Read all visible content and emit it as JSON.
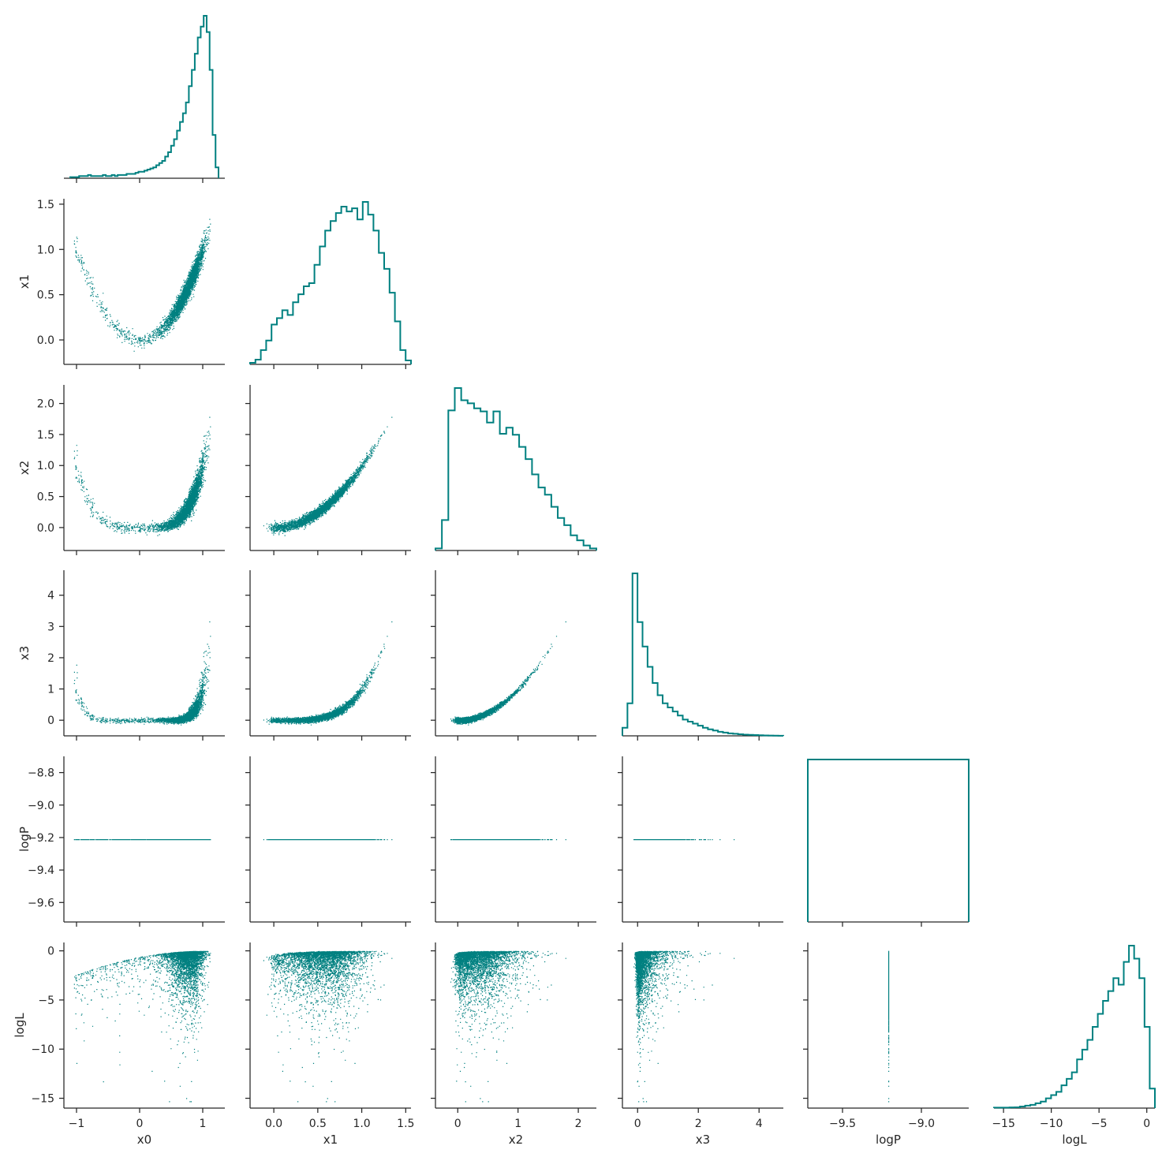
{
  "chart_data": {
    "type": "pairplot",
    "variables": [
      "x0",
      "x1",
      "x2",
      "x3",
      "logP",
      "logL"
    ],
    "color": "#008080",
    "layout": "lower-triangle",
    "axes": {
      "x0": {
        "label": "x0",
        "range": [
          -1.2,
          1.35
        ],
        "ticks": [
          -1,
          0,
          1
        ],
        "tick_labels": [
          "−1",
          "0",
          "1"
        ]
      },
      "x1": {
        "label": "x1",
        "range": [
          -0.27,
          1.56
        ],
        "ticks": [
          0.0,
          0.5,
          1.0,
          1.5
        ],
        "tick_labels": [
          "0.0",
          "0.5",
          "1.0",
          "1.5"
        ]
      },
      "x2": {
        "label": "x2",
        "range": [
          -0.37,
          2.3
        ],
        "ticks": [
          0.0,
          0.5,
          1.0,
          1.5,
          2.0
        ],
        "tick_labels": [
          "0.0",
          "0.5",
          "1.0",
          "1.5",
          "2.0"
        ]
      },
      "x3": {
        "label": "x3",
        "range": [
          -0.5,
          4.8
        ],
        "ticks": [
          0,
          1,
          2,
          3,
          4
        ],
        "tick_labels": [
          "0",
          "1",
          "2",
          "3",
          "4"
        ]
      },
      "logP": {
        "label": "logP",
        "range": [
          -9.72,
          -8.7
        ],
        "ticks": [
          -8.8,
          -9.0,
          -9.2,
          -9.4,
          -9.6
        ],
        "tick_labels": [
          "−8.8",
          "−9.0",
          "−9.2",
          "−9.4",
          "−9.6"
        ]
      },
      "logL": {
        "label": "logL",
        "range": [
          -16.0,
          0.85
        ],
        "ticks": [
          0,
          -5,
          -10,
          -15
        ],
        "tick_labels": [
          "0",
          "−5",
          "−10",
          "−15"
        ]
      }
    },
    "x_axis_ticks": {
      "x0": {
        "ticks": [
          -1,
          0,
          1
        ],
        "tick_labels": [
          "−1",
          "0",
          "1"
        ]
      },
      "x1": {
        "ticks": [
          0.0,
          0.5,
          1.0,
          1.5
        ],
        "tick_labels": [
          "0.0",
          "0.5",
          "1.0",
          "1.5"
        ]
      },
      "x2": {
        "ticks": [
          0,
          1,
          2
        ],
        "tick_labels": [
          "0",
          "1",
          "2"
        ]
      },
      "x3": {
        "ticks": [
          0,
          2,
          4
        ],
        "tick_labels": [
          "0",
          "2",
          "4"
        ]
      },
      "logP": {
        "ticks": [
          -9.5,
          -9.0
        ],
        "tick_labels": [
          "−9.5",
          "−9.0"
        ]
      },
      "logL": {
        "ticks": [
          -15,
          -10,
          -5,
          0
        ],
        "tick_labels": [
          "−15",
          "−10",
          "−5",
          "0"
        ]
      }
    },
    "histograms": {
      "x0": {
        "edges_range": [
          -1.1,
          1.25
        ],
        "counts": [
          1,
          1,
          1,
          2,
          2,
          2,
          3,
          2,
          2,
          2,
          2,
          3,
          2,
          2,
          3,
          2,
          3,
          3,
          3,
          4,
          4,
          4,
          5,
          6,
          6,
          7,
          8,
          9,
          10,
          12,
          14,
          16,
          20,
          24,
          30,
          36,
          44,
          52,
          60,
          70,
          85,
          100,
          115,
          130,
          140,
          150,
          135,
          100,
          40,
          10
        ]
      },
      "x1": {
        "edges_range": [
          -0.27,
          1.56
        ],
        "counts": [
          2,
          6,
          18,
          30,
          50,
          58,
          68,
          62,
          78,
          88,
          98,
          102,
          125,
          148,
          168,
          180,
          190,
          198,
          192,
          196,
          182,
          204,
          188,
          168,
          140,
          120,
          90,
          54,
          18,
          5
        ]
      },
      "x2": {
        "edges_range": [
          -0.37,
          2.3
        ],
        "counts": [
          2,
          30,
          138,
          160,
          148,
          145,
          140,
          137,
          126,
          137,
          115,
          121,
          114,
          102,
          90,
          75,
          62,
          55,
          43,
          32,
          25,
          15,
          10,
          5,
          2
        ]
      },
      "x3": {
        "edges_range": [
          -0.5,
          4.8
        ],
        "counts": [
          2,
          8,
          40,
          28,
          22,
          17,
          13,
          10,
          8,
          7,
          6,
          5,
          4,
          3.5,
          3,
          2.5,
          2,
          1.6,
          1.3,
          1,
          0.8,
          0.6,
          0.5,
          0.4,
          0.3,
          0.25,
          0.2,
          0.15,
          0.1,
          0.08,
          0.05,
          0.02
        ]
      },
      "logP": {
        "edges_range": [
          -9.72,
          -8.7
        ],
        "counts": [
          1
        ]
      },
      "logL": {
        "edges_range": [
          -16.0,
          0.85
        ],
        "counts": [
          0.3,
          0.3,
          0.3,
          0.4,
          0.5,
          1,
          1.5,
          2,
          3,
          4,
          6,
          8,
          10,
          14,
          18,
          22,
          30,
          36,
          42,
          50,
          58,
          66,
          72,
          80,
          76,
          90,
          100,
          92,
          80,
          50,
          12
        ]
      }
    },
    "point_count_approx": 8000
  }
}
